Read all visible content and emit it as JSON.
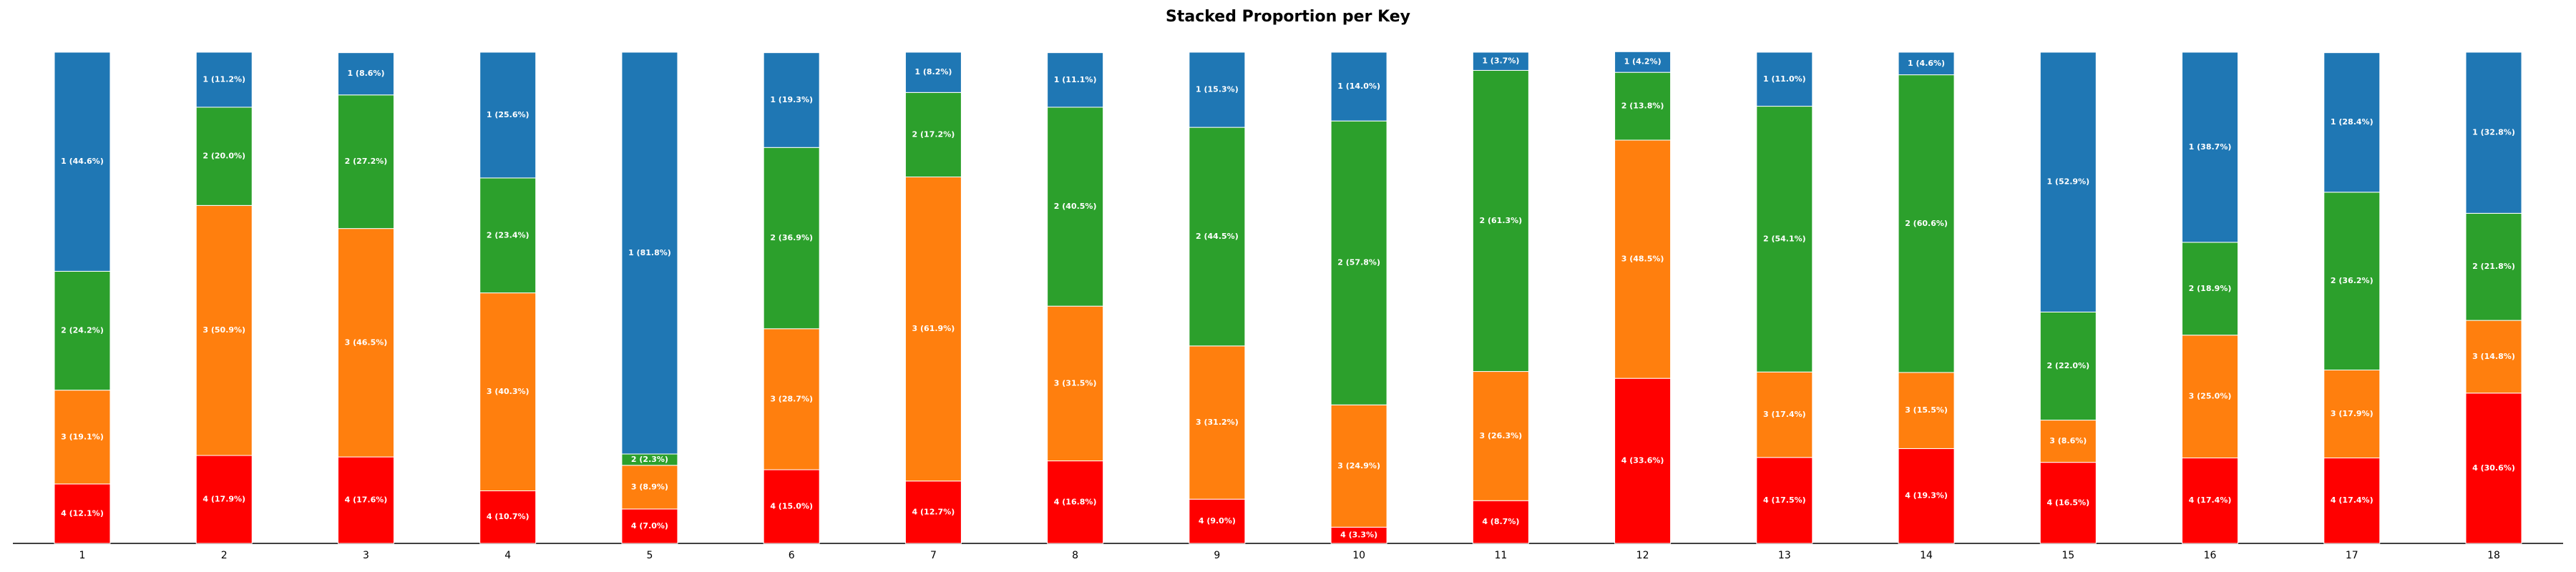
{
  "chart_data": {
    "type": "stacked_bar",
    "title": "Stacked Proportion per Key",
    "categories": [
      "1",
      "2",
      "3",
      "4",
      "5",
      "6",
      "7",
      "8",
      "9",
      "10",
      "11",
      "12",
      "13",
      "14",
      "15",
      "16",
      "17",
      "18"
    ],
    "ylim": [
      0,
      100
    ],
    "series": [
      {
        "name": "4",
        "color": "#ff0000",
        "values": [
          12.1,
          17.9,
          17.6,
          10.7,
          7.0,
          15.0,
          12.7,
          16.8,
          9.0,
          3.3,
          8.7,
          33.6,
          17.5,
          19.3,
          16.5,
          17.4,
          17.4,
          30.6
        ],
        "value_labels": [
          "4 (12.1%)",
          "4 (17.9%)",
          "4 (17.6%)",
          "4 (10.7%)",
          "4 (7.0%)",
          "4 (15.0%)",
          "4 (12.7%)",
          "4 (16.8%)",
          "4 (9.0%)",
          "4 (3.3%)",
          "4 (8.7%)",
          "4 (33.6%)",
          "4 (17.5%)",
          "4 (19.3%)",
          "4 (16.5%)",
          "4 (17.4%)",
          "4 (17.4%)",
          "4 (30.6%)"
        ]
      },
      {
        "name": "3",
        "color": "#ff7f0e",
        "values": [
          19.1,
          50.9,
          46.5,
          40.3,
          8.9,
          28.7,
          61.9,
          31.5,
          31.2,
          24.9,
          26.3,
          48.5,
          17.4,
          15.5,
          8.6,
          25.0,
          17.9,
          14.8
        ],
        "value_labels": [
          "3 (19.1%)",
          "3 (50.9%)",
          "3 (46.5%)",
          "3 (40.3%)",
          "3 (8.9%)",
          "3 (28.7%)",
          "3 (61.9%)",
          "3 (31.5%)",
          "3 (31.2%)",
          "3 (24.9%)",
          "3 (26.3%)",
          "3 (48.5%)",
          "3 (17.4%)",
          "3 (15.5%)",
          "3 (8.6%)",
          "3 (25.0%)",
          "3 (17.9%)",
          "3 (14.8%)"
        ]
      },
      {
        "name": "2",
        "color": "#2ca02c",
        "values": [
          24.2,
          20.0,
          27.2,
          23.4,
          2.3,
          36.9,
          17.2,
          40.5,
          44.5,
          57.8,
          61.3,
          13.8,
          54.1,
          60.6,
          22.0,
          18.9,
          36.2,
          21.8
        ],
        "value_labels": [
          "2 (24.2%)",
          "2 (20.0%)",
          "2 (27.2%)",
          "2 (23.4%)",
          "2 (2.3%)",
          "2 (36.9%)",
          "2 (17.2%)",
          "2 (40.5%)",
          "2 (44.5%)",
          "2 (57.8%)",
          "2 (61.3%)",
          "2 (13.8%)",
          "2 (54.1%)",
          "2 (60.6%)",
          "2 (22.0%)",
          "2 (18.9%)",
          "2 (36.2%)",
          "2 (21.8%)"
        ]
      },
      {
        "name": "1",
        "color": "#1f77b4",
        "values": [
          44.6,
          11.2,
          8.6,
          25.6,
          81.8,
          19.3,
          8.2,
          11.1,
          15.3,
          14.0,
          3.7,
          4.2,
          11.0,
          4.6,
          52.9,
          38.7,
          28.4,
          32.8
        ],
        "value_labels": [
          "1 (44.6%)",
          "1 (11.2%)",
          "1 (8.6%)",
          "1 (25.6%)",
          "1 (81.8%)",
          "1 (19.3%)",
          "1 (8.2%)",
          "1 (11.1%)",
          "1 (15.3%)",
          "1 (14.0%)",
          "1 (3.7%)",
          "1 (4.2%)",
          "1 (11.0%)",
          "1 (4.6%)",
          "1 (52.9%)",
          "1 (38.7%)",
          "1 (28.4%)",
          "1 (32.8%)"
        ]
      }
    ]
  }
}
